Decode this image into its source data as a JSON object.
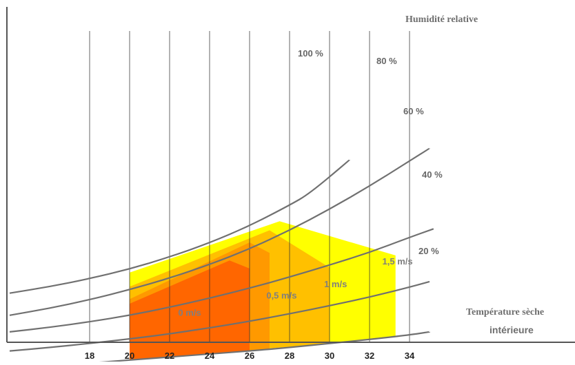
{
  "chart_data": {
    "type": "area",
    "x_axis": {
      "label_line1": "Température sèche",
      "label_line2": "intérieure",
      "ticks": [
        18,
        20,
        22,
        24,
        26,
        28,
        30,
        32,
        34
      ],
      "range": [
        14,
        36
      ]
    },
    "y_axis_label": "Humidité relative",
    "grid": {
      "vertical": true,
      "horizontal": false
    },
    "rh_curves": [
      {
        "label": "100 %",
        "rh": 100,
        "points": [
          [
            14,
            4.7
          ],
          [
            16,
            6.0
          ],
          [
            18,
            7.6
          ],
          [
            20,
            9.5
          ],
          [
            22,
            11.9
          ],
          [
            24,
            14.7
          ],
          [
            26,
            18.1
          ],
          [
            28,
            22.2
          ],
          [
            29,
            24.5
          ],
          [
            31,
            31.2
          ]
        ]
      },
      {
        "label": "80 %",
        "rh": 80,
        "points": [
          [
            14,
            0.3
          ],
          [
            16,
            1.7
          ],
          [
            18,
            3.4
          ],
          [
            20,
            5.4
          ],
          [
            22,
            7.7
          ],
          [
            24,
            10.4
          ],
          [
            26,
            13.5
          ],
          [
            28,
            17.2
          ],
          [
            30,
            21.4
          ],
          [
            32,
            26.0
          ],
          [
            34,
            31.0
          ],
          [
            35,
            33.5
          ]
        ]
      },
      {
        "label": "60 %",
        "rh": 60,
        "points": [
          [
            14,
            -3.0
          ],
          [
            16,
            -2.1
          ],
          [
            18,
            -1.0
          ],
          [
            20,
            0.3
          ],
          [
            22,
            1.9
          ],
          [
            24,
            3.7
          ],
          [
            26,
            5.7
          ],
          [
            28,
            7.9
          ],
          [
            30,
            10.3
          ],
          [
            32,
            12.8
          ],
          [
            34,
            15.8
          ],
          [
            35.2,
            17.5
          ]
        ]
      },
      {
        "label": "40 %",
        "rh": 40,
        "points": [
          [
            14,
            -6.8
          ],
          [
            16,
            -6.1
          ],
          [
            18,
            -5.3
          ],
          [
            20,
            -4.4
          ],
          [
            22,
            -3.4
          ],
          [
            24,
            -2.2
          ],
          [
            26,
            -0.9
          ],
          [
            28,
            0.6
          ],
          [
            30,
            2.2
          ],
          [
            32,
            3.9
          ],
          [
            34,
            5.9
          ],
          [
            35,
            7.0
          ]
        ]
      },
      {
        "label": "20 %",
        "rh": 20,
        "points": [
          [
            14,
            -10.0
          ],
          [
            16,
            -9.6
          ],
          [
            18,
            -9.2
          ],
          [
            20,
            -8.6
          ],
          [
            22,
            -8.0
          ],
          [
            24,
            -7.4
          ],
          [
            26,
            -6.8
          ],
          [
            28,
            -6.1
          ],
          [
            30,
            -5.3
          ],
          [
            32,
            -4.5
          ],
          [
            34,
            -3.6
          ],
          [
            35,
            -3.0
          ]
        ]
      }
    ],
    "comfort_zones": [
      {
        "label": "1,5 m/s",
        "air_speed": 1.5,
        "color": "#FFFF00",
        "outline": [
          [
            20,
            -8.6
          ],
          [
            20,
            8.8
          ],
          [
            27.5,
            19.0
          ],
          [
            33.3,
            12.2
          ],
          [
            33.3,
            -4.0
          ]
        ]
      },
      {
        "label": "1 m/s",
        "air_speed": 1.0,
        "color": "#FFC000",
        "outline": [
          [
            20,
            -8.6
          ],
          [
            20,
            6.0
          ],
          [
            27,
            17.2
          ],
          [
            30,
            9.8
          ],
          [
            30,
            -5.3
          ]
        ]
      },
      {
        "label": "0,5 m/s",
        "air_speed": 0.5,
        "color": "#FF9900",
        "outline": [
          [
            20,
            -8.6
          ],
          [
            20,
            3.5
          ],
          [
            26,
            14.8
          ],
          [
            27,
            12.7
          ],
          [
            27,
            -6.5
          ]
        ]
      },
      {
        "label": "0 m/s",
        "air_speed": 0.0,
        "color": "#FF6600",
        "outline": [
          [
            20,
            -8.6
          ],
          [
            20,
            2.6
          ],
          [
            25,
            11.2
          ],
          [
            26,
            9.6
          ],
          [
            26,
            -6.8
          ]
        ]
      }
    ]
  }
}
